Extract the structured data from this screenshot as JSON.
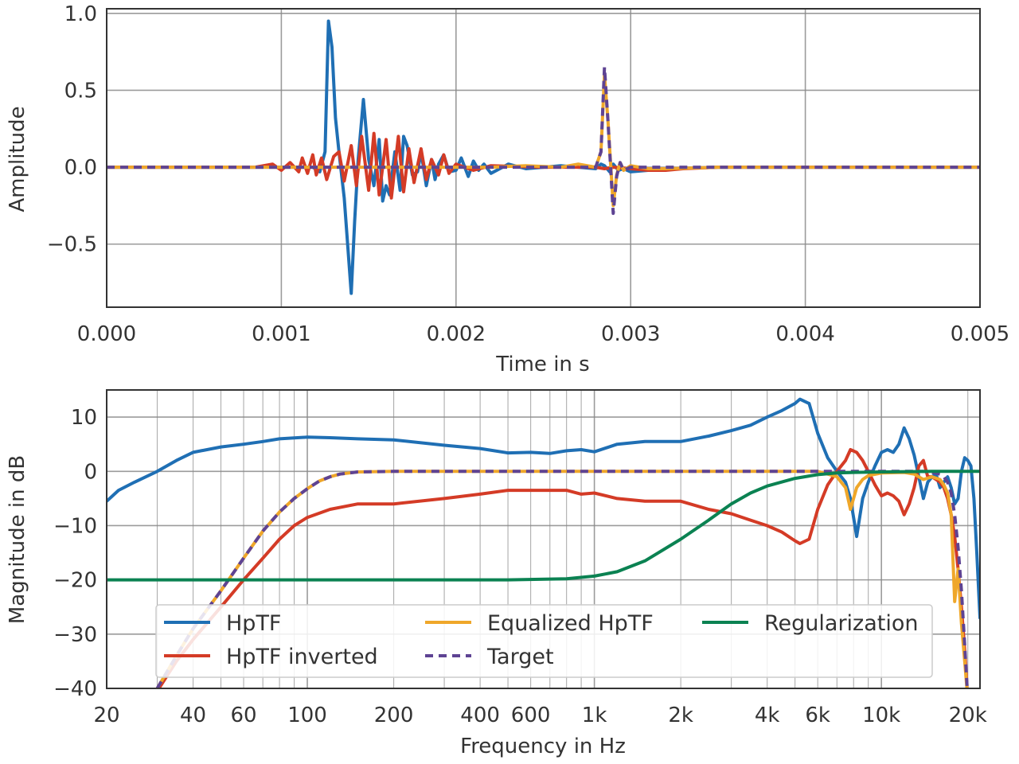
{
  "colors": {
    "hptf": "#1f6fb4",
    "hptf_inverted": "#d43b26",
    "equalized": "#efa72a",
    "target": "#5e4393",
    "regularization": "#0b8252",
    "grid": "#8a8a8a",
    "frame": "#333333"
  },
  "chart_data": [
    {
      "type": "line",
      "xlabel": "Time in s",
      "ylabel": "Amplitude",
      "xlim": [
        0,
        0.005
      ],
      "ylim": [
        -0.91,
        1.03
      ],
      "xticks": [
        0,
        0.001,
        0.002,
        0.003,
        0.004,
        0.005
      ],
      "xtick_labels": [
        "0.000",
        "0.001",
        "0.002",
        "0.003",
        "0.004",
        "0.005"
      ],
      "yticks": [
        1.0,
        0.5,
        0.0,
        -0.5
      ],
      "ytick_labels": [
        "1.0",
        "0.5",
        "0.0",
        "−0.5"
      ],
      "grid": true,
      "series": [
        {
          "name": "HpTF",
          "color_key": "hptf",
          "dash": false,
          "x": [
            0,
            0.0005,
            0.001,
            0.00118,
            0.00122,
            0.00125,
            0.00127,
            0.00129,
            0.00131,
            0.00133,
            0.00136,
            0.0014,
            0.00142,
            0.00144,
            0.00147,
            0.0015,
            0.00153,
            0.00156,
            0.00158,
            0.0016,
            0.00162,
            0.00165,
            0.00168,
            0.0017,
            0.00172,
            0.00175,
            0.00178,
            0.0018,
            0.00183,
            0.00186,
            0.00188,
            0.0019,
            0.00193,
            0.00196,
            0.002,
            0.00203,
            0.00207,
            0.0021,
            0.00213,
            0.00216,
            0.0022,
            0.0023,
            0.0024,
            0.0025,
            0.0026,
            0.0027,
            0.0028,
            0.00283,
            0.00285,
            0.00288,
            0.0029,
            0.00293,
            0.00296,
            0.003,
            0.0031,
            0.0032,
            0.0035,
            0.004,
            0.0045,
            0.005
          ],
          "y": [
            0,
            0,
            0,
            0.0,
            -0.03,
            0.1,
            0.95,
            0.78,
            0.32,
            0.1,
            -0.2,
            -0.82,
            -0.35,
            0.05,
            0.44,
            0.05,
            -0.12,
            0.18,
            -0.22,
            -0.12,
            -0.18,
            0.1,
            -0.15,
            0.2,
            0.14,
            -0.05,
            -0.03,
            0.1,
            -0.12,
            0.05,
            -0.08,
            0.02,
            0.08,
            -0.03,
            -0.02,
            0.06,
            -0.06,
            0.04,
            -0.02,
            0.02,
            -0.04,
            0.02,
            -0.01,
            0.0,
            0.01,
            0.0,
            -0.01,
            0.02,
            0.01,
            -0.03,
            0.02,
            -0.02,
            -0.01,
            -0.03,
            -0.02,
            -0.01,
            0.0,
            0.0,
            0.0,
            0.0
          ]
        },
        {
          "name": "HpTF inverted",
          "color_key": "hptf_inverted",
          "dash": false,
          "x": [
            0,
            0.0005,
            0.00085,
            0.00095,
            0.001,
            0.00105,
            0.0011,
            0.00112,
            0.00115,
            0.00118,
            0.0012,
            0.00123,
            0.00126,
            0.0013,
            0.00133,
            0.00136,
            0.0014,
            0.00143,
            0.00146,
            0.0015,
            0.00153,
            0.00156,
            0.0016,
            0.00163,
            0.00167,
            0.0017,
            0.00173,
            0.00176,
            0.0018,
            0.00183,
            0.00186,
            0.0019,
            0.00193,
            0.00196,
            0.002,
            0.0021,
            0.0022,
            0.0025,
            0.0028,
            0.00285,
            0.0029,
            0.003,
            0.0031,
            0.0032,
            0.0033,
            0.0035,
            0.004,
            0.0045,
            0.005
          ],
          "y": [
            0,
            0,
            0.0,
            0.02,
            -0.02,
            0.03,
            -0.03,
            0.06,
            -0.04,
            0.08,
            -0.05,
            0.06,
            -0.08,
            0.07,
            0.1,
            -0.09,
            0.14,
            -0.12,
            0.2,
            -0.15,
            0.22,
            -0.18,
            0.18,
            -0.2,
            0.2,
            -0.16,
            0.12,
            -0.1,
            0.12,
            -0.08,
            0.05,
            -0.05,
            0.08,
            -0.04,
            0.02,
            -0.02,
            0.01,
            0.0,
            0.0,
            -0.01,
            0.0,
            -0.01,
            -0.02,
            -0.02,
            -0.01,
            0.0,
            0.0,
            0.0,
            0.0
          ]
        },
        {
          "name": "Equalized HpTF",
          "color_key": "equalized",
          "dash": false,
          "x": [
            0,
            0.001,
            0.002,
            0.0022,
            0.0024,
            0.0026,
            0.0027,
            0.0028,
            0.00283,
            0.00285,
            0.00287,
            0.0029,
            0.00292,
            0.00294,
            0.00296,
            0.003,
            0.0031,
            0.0032,
            0.0035,
            0.004,
            0.0045,
            0.005
          ],
          "y": [
            0,
            0,
            0.0,
            0.0,
            0.01,
            0.0,
            0.02,
            0.0,
            0.1,
            0.6,
            0.3,
            -0.25,
            -0.05,
            0.03,
            -0.02,
            0.01,
            -0.01,
            -0.01,
            0.0,
            0.0,
            0.0,
            0.0
          ]
        },
        {
          "name": "Target",
          "color_key": "target",
          "dash": true,
          "x": [
            0,
            0.001,
            0.002,
            0.0027,
            0.0028,
            0.00283,
            0.00285,
            0.00287,
            0.0029,
            0.00292,
            0.00294,
            0.00296,
            0.003,
            0.0031,
            0.0035,
            0.004,
            0.005
          ],
          "y": [
            0,
            0,
            0,
            0,
            0.0,
            0.1,
            0.65,
            0.3,
            -0.3,
            -0.06,
            0.03,
            -0.02,
            0.0,
            0.0,
            0.0,
            0.0,
            0.0
          ]
        }
      ]
    },
    {
      "type": "line",
      "xscale": "log",
      "xlabel": "Frequency in Hz",
      "ylabel": "Magnitude in dB",
      "xlim": [
        20,
        22050
      ],
      "ylim": [
        -40,
        15
      ],
      "xticks": [
        20,
        40,
        60,
        100,
        200,
        400,
        600,
        1000,
        2000,
        4000,
        6000,
        10000,
        20000
      ],
      "xtick_labels": [
        "20",
        "40",
        "60",
        "100",
        "200",
        "400",
        "600",
        "1k",
        "2k",
        "4k",
        "6k",
        "10k",
        "20k"
      ],
      "yticks": [
        10,
        0,
        -10,
        -20,
        -30,
        -40
      ],
      "ytick_labels": [
        "10",
        "0",
        "−10",
        "−20",
        "−30",
        "−40"
      ],
      "grid": true,
      "legend": {
        "placement": "lower-center",
        "columns": 3,
        "entries": [
          {
            "label": "HpTF",
            "color_key": "hptf",
            "dash": false
          },
          {
            "label": "HpTF inverted",
            "color_key": "hptf_inverted",
            "dash": false
          },
          {
            "label": "Equalized HpTF",
            "color_key": "equalized",
            "dash": false
          },
          {
            "label": "Target",
            "color_key": "target",
            "dash": true
          },
          {
            "label": "Regularization",
            "color_key": "regularization",
            "dash": false
          }
        ]
      },
      "series": [
        {
          "name": "HpTF",
          "color_key": "hptf",
          "dash": false,
          "x": [
            20,
            22,
            25,
            30,
            35,
            40,
            50,
            60,
            70,
            80,
            100,
            120,
            150,
            200,
            300,
            400,
            500,
            600,
            700,
            800,
            900,
            1000,
            1200,
            1500,
            2000,
            2500,
            3000,
            3500,
            4000,
            4500,
            5000,
            5200,
            5600,
            6000,
            6500,
            7000,
            7500,
            7800,
            8200,
            8600,
            9000,
            9500,
            10000,
            10500,
            11000,
            11500,
            12000,
            12500,
            13000,
            13500,
            14000,
            14500,
            15000,
            15500,
            16000,
            16500,
            17000,
            17500,
            18000,
            18500,
            19000,
            19500,
            20000,
            20500,
            21000,
            21500,
            22050
          ],
          "y": [
            -5.5,
            -3.5,
            -2,
            0,
            2,
            3.5,
            4.5,
            5,
            5.5,
            6,
            6.3,
            6.2,
            6,
            5.8,
            4.8,
            4.2,
            3.4,
            3.5,
            3.3,
            3.8,
            4,
            3.6,
            5,
            5.5,
            5.5,
            6.5,
            7.5,
            8.5,
            10,
            11.2,
            12.5,
            13.3,
            12.5,
            7,
            2.5,
            0,
            -2,
            -5,
            -12,
            -5,
            -2,
            1,
            3.5,
            4,
            3.5,
            5,
            8,
            6,
            3,
            -1,
            -5,
            -2,
            -1,
            -0.5,
            -3,
            -2,
            -1,
            -3,
            -6,
            -5,
            0,
            2.5,
            2,
            1,
            -5,
            -15,
            -27
          ]
        },
        {
          "name": "HpTF inverted",
          "color_key": "hptf_inverted",
          "dash": false,
          "x": [
            30,
            35,
            40,
            50,
            60,
            70,
            80,
            90,
            100,
            120,
            150,
            200,
            300,
            400,
            500,
            600,
            700,
            800,
            900,
            1000,
            1200,
            1500,
            2000,
            2500,
            3000,
            3500,
            4000,
            4500,
            5000,
            5200,
            5600,
            6000,
            6500,
            7000,
            7500,
            7800,
            8200,
            8600,
            9000,
            9500,
            10000,
            10500,
            11000,
            11500,
            12000,
            12500,
            13000,
            13500,
            14000,
            14500,
            15000,
            15500,
            16000,
            16500,
            17000,
            17500,
            18000,
            18500,
            19000,
            19500,
            20000
          ],
          "y": [
            -40.5,
            -35,
            -31,
            -25,
            -20,
            -16,
            -12.5,
            -10,
            -8.5,
            -7,
            -6,
            -6,
            -5,
            -4.2,
            -3.5,
            -3.5,
            -3.5,
            -3.5,
            -4.2,
            -4,
            -5,
            -5.5,
            -5.5,
            -7,
            -7.8,
            -9,
            -10,
            -11.2,
            -12.8,
            -13.3,
            -12.5,
            -7,
            -2.5,
            0,
            2,
            4,
            3.5,
            2,
            0,
            -2.5,
            -4.5,
            -4,
            -4.5,
            -5.5,
            -8,
            -6,
            -3,
            1,
            2,
            -1,
            -1,
            -1.5,
            -2,
            -3,
            -5,
            -8,
            -12,
            -18,
            -25,
            -33,
            -42
          ]
        },
        {
          "name": "Equalized HpTF",
          "color_key": "equalized",
          "dash": false,
          "x": [
            30,
            35,
            40,
            50,
            60,
            70,
            80,
            90,
            100,
            110,
            120,
            130,
            150,
            200,
            500,
            1000,
            2000,
            4000,
            6000,
            6500,
            7000,
            7500,
            7800,
            8200,
            8600,
            9000,
            10000,
            12000,
            13000,
            14000,
            15000,
            16000,
            16500,
            17000,
            17500,
            18000,
            18500,
            19000,
            19500,
            20000
          ],
          "y": [
            -40,
            -34,
            -29,
            -22,
            -16,
            -11,
            -7.5,
            -5,
            -3.2,
            -1.8,
            -1,
            -0.5,
            -0.1,
            0,
            0,
            0,
            0,
            0,
            0,
            -0.5,
            -1,
            -3,
            -7,
            -3,
            -1.5,
            -0.8,
            -0.3,
            -0.2,
            -0.5,
            -1.5,
            -1,
            -1.5,
            -2.5,
            -4,
            -8,
            -24,
            -18,
            -28,
            -35,
            -42
          ]
        },
        {
          "name": "Target",
          "color_key": "target",
          "dash": true,
          "x": [
            30,
            35,
            40,
            50,
            60,
            70,
            80,
            90,
            100,
            110,
            120,
            130,
            150,
            200,
            500,
            1000,
            2000,
            4000,
            6000,
            8000,
            10000,
            12000,
            14000,
            15000,
            16000,
            16500,
            17000,
            17500,
            18000,
            18500,
            19000,
            19500,
            20000
          ],
          "y": [
            -40,
            -34,
            -29,
            -22,
            -16,
            -11,
            -7.5,
            -5,
            -3.2,
            -1.8,
            -1,
            -0.5,
            -0.1,
            0,
            0,
            0,
            0,
            0,
            0,
            0,
            0,
            0,
            0,
            -0.2,
            -0.5,
            -1,
            -2,
            -4,
            -8,
            -14,
            -22,
            -32,
            -42
          ]
        },
        {
          "name": "Regularization",
          "color_key": "regularization",
          "dash": false,
          "x": [
            20,
            100,
            500,
            800,
            1000,
            1200,
            1500,
            2000,
            2500,
            3000,
            3500,
            4000,
            5000,
            6000,
            7000,
            8000,
            10000,
            15000,
            22050
          ],
          "y": [
            -20,
            -20,
            -20,
            -19.8,
            -19.3,
            -18.5,
            -16.5,
            -12.5,
            -9,
            -6,
            -4,
            -2.7,
            -1.3,
            -0.6,
            -0.3,
            -0.2,
            -0.1,
            0,
            0
          ]
        }
      ]
    }
  ]
}
